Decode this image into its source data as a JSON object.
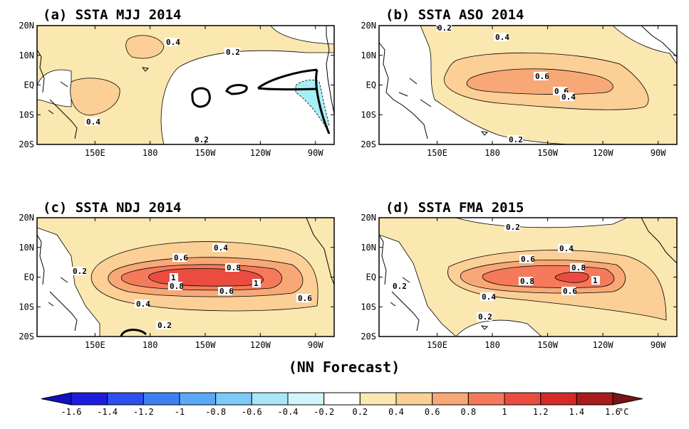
{
  "colors": {
    "c_02_04": "#fbe7b0",
    "c_04_06": "#fbcf95",
    "c_06_08": "#f8a877",
    "c_08_10": "#f47a5b",
    "c_10_12": "#ea4d40",
    "c_n02_n04": "#a8eef6",
    "neutral": "#ffffff"
  },
  "panels": [
    {
      "title": "(a) SSTA  MJJ 2014",
      "contour_labels": [
        "0.4",
        "0.2",
        "0.4",
        "0.2"
      ]
    },
    {
      "title": "(b) SSTA  ASO 2014",
      "contour_labels": [
        "0.2",
        "0.4",
        "0.6",
        "0.6",
        "0.4",
        "0.2"
      ]
    },
    {
      "title": "(c) SSTA  NDJ 2014",
      "contour_labels": [
        "0.4",
        "0.6",
        "0.8",
        "1",
        "1",
        "0.8",
        "0.6",
        "0.6",
        "0.4",
        "0.2",
        "0.2"
      ]
    },
    {
      "title": "(d) SSTA  FMA 2015",
      "contour_labels": [
        "0.2",
        "0.4",
        "0.6",
        "0.8",
        "1",
        "0.8",
        "0.6",
        "0.4",
        "0.2",
        "0.2"
      ]
    }
  ],
  "axes": {
    "lon_ticks": [
      "150E",
      "180",
      "150W",
      "120W",
      "90W"
    ],
    "lat_ticks": [
      "20N",
      "10N",
      "EQ",
      "10S",
      "20S"
    ]
  },
  "footer": "(NN Forecast)",
  "colorbar": {
    "labels": [
      "-1.6",
      "-1.4",
      "-1.2",
      "-1",
      "-0.8",
      "-0.6",
      "-0.4",
      "-0.2",
      "0.2",
      "0.4",
      "0.6",
      "0.8",
      "1",
      "1.2",
      "1.4",
      "1.6"
    ],
    "unit": "°C",
    "colors": [
      "#1c1ce0",
      "#2b50ee",
      "#3e80f4",
      "#5aa9f8",
      "#7ccaf8",
      "#a8e6f8",
      "#cff5fb",
      "#ffffff",
      "#fbe7b0",
      "#fbcf95",
      "#f8a877",
      "#f47a5b",
      "#ea4d40",
      "#d42a2a",
      "#a81c1c"
    ]
  }
}
